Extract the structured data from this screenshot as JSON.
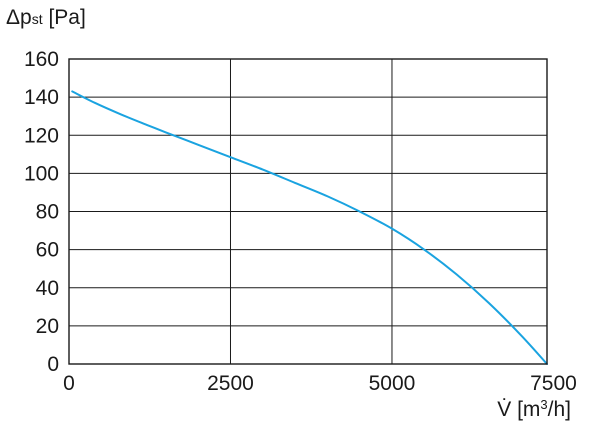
{
  "chart_data": {
    "type": "line",
    "ylabel": {
      "delta": "Δp",
      "sub": "st",
      "unit": " [Pa]"
    },
    "xlabel": {
      "symbol": "V̇",
      "unit_open": " [m",
      "unit_sup": "3",
      "unit_close": "/h]"
    },
    "xlim": [
      0,
      7400
    ],
    "ylim": [
      0,
      160
    ],
    "x_ticks": [
      0,
      2500,
      5000,
      7500
    ],
    "y_ticks": [
      0,
      20,
      40,
      60,
      80,
      100,
      120,
      140,
      160
    ],
    "x_gridlines": [
      2500,
      5000
    ],
    "y_gridlines": [
      20,
      40,
      60,
      80,
      100,
      120,
      140
    ],
    "grid": true,
    "series": [
      {
        "color": "#1aa3e0",
        "x": [
          50,
          400,
          800,
          1200,
          1500,
          2000,
          2500,
          3000,
          3500,
          4000,
          4500,
          5000,
          5500,
          6000,
          6500,
          7000,
          7400
        ],
        "y": [
          143,
          137,
          131,
          125.5,
          121.5,
          115,
          108.5,
          102,
          95,
          88,
          80,
          71,
          60,
          47,
          32,
          15,
          0
        ]
      }
    ]
  }
}
